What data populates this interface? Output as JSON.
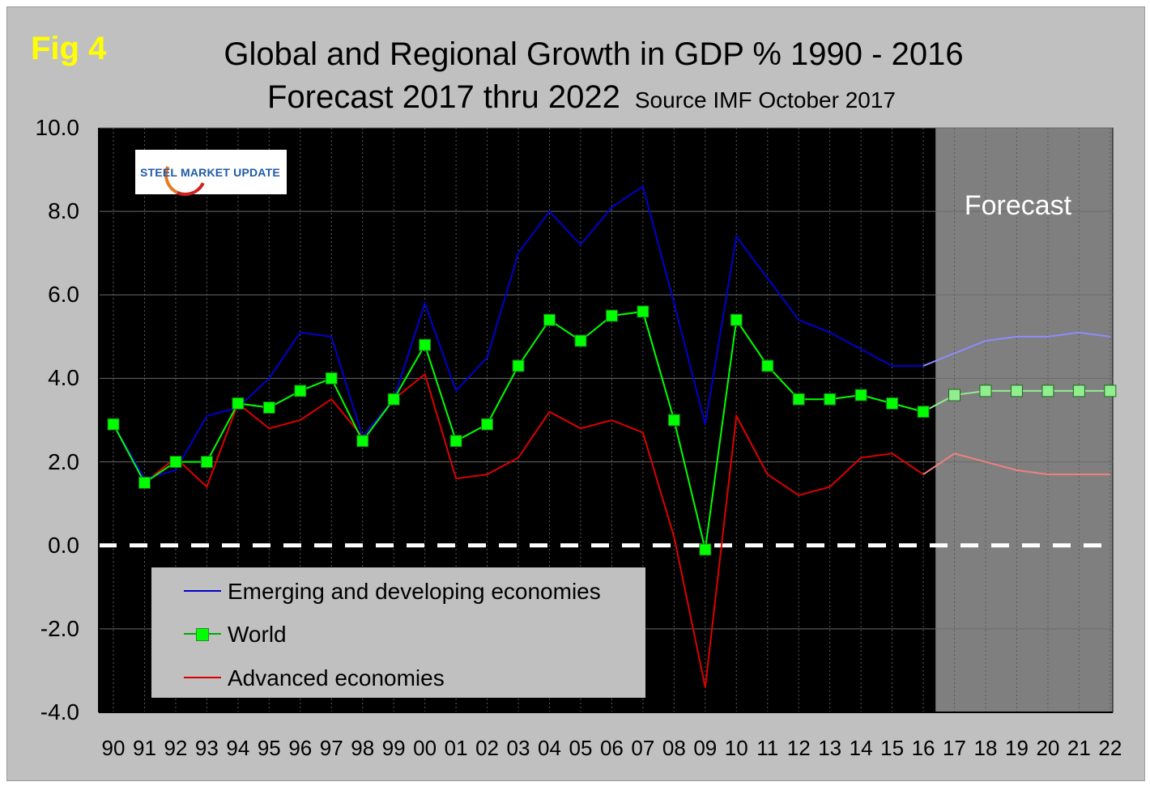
{
  "figure": {
    "label": "Fig 4",
    "title_line1": "Global and Regional Growth in GDP % 1990 - 2016",
    "title_line2": "Forecast 2017 thru 2022",
    "source": "Source IMF October 2017",
    "logo_text_steel": "STEEL",
    "logo_text_rest": " MARKET UPDATE",
    "forecast_label": "Forecast"
  },
  "colors": {
    "plot_bg": "#000000",
    "forecast_bg": "#7f7f7f",
    "frame_bg": "#c0c0c0",
    "emerging": "#0000cc",
    "emerging_forecast": "#8c8cff",
    "world": "#00ff00",
    "world_forecast": "#90ee90",
    "advanced": "#dd0000",
    "advanced_forecast": "#f08080",
    "zero_line": "#ffffff"
  },
  "chart_data": {
    "type": "line",
    "title": "Global and Regional Growth in GDP % 1990 - 2016",
    "subtitle": "Forecast 2017 thru 2022",
    "xlabel": "",
    "ylabel": "",
    "categories": [
      "90",
      "91",
      "92",
      "93",
      "94",
      "95",
      "96",
      "97",
      "98",
      "99",
      "00",
      "01",
      "02",
      "03",
      "04",
      "05",
      "06",
      "07",
      "08",
      "09",
      "10",
      "11",
      "12",
      "13",
      "14",
      "15",
      "16",
      "17",
      "18",
      "19",
      "20",
      "21",
      "22"
    ],
    "forecast_start_index": 27,
    "ylim": [
      -4.0,
      10.0
    ],
    "yticks": [
      "10.0",
      "8.0",
      "6.0",
      "4.0",
      "2.0",
      "0.0",
      "-2.0",
      "-4.0"
    ],
    "ytick_values": [
      10,
      8,
      6,
      4,
      2,
      0,
      -2,
      -4
    ],
    "grid": "horizontal",
    "legend_position": "lower-left",
    "series": [
      {
        "name": "Emerging and developing economies",
        "key": "emerging",
        "marker": false,
        "values": [
          2.9,
          1.6,
          1.8,
          3.1,
          3.3,
          4.0,
          5.1,
          5.0,
          2.6,
          3.5,
          5.8,
          3.7,
          4.5,
          7.0,
          8.0,
          7.2,
          8.1,
          8.6,
          5.8,
          2.9,
          7.4,
          6.4,
          5.4,
          5.1,
          4.7,
          4.3,
          4.3,
          4.6,
          4.9,
          5.0,
          5.0,
          5.1,
          5.0
        ]
      },
      {
        "name": "World",
        "key": "world",
        "marker": true,
        "values": [
          2.9,
          1.5,
          2.0,
          2.0,
          3.4,
          3.3,
          3.7,
          4.0,
          2.5,
          3.5,
          4.8,
          2.5,
          2.9,
          4.3,
          5.4,
          4.9,
          5.5,
          5.6,
          3.0,
          -0.1,
          5.4,
          4.3,
          3.5,
          3.5,
          3.6,
          3.4,
          3.2,
          3.6,
          3.7,
          3.7,
          3.7,
          3.7,
          3.7
        ]
      },
      {
        "name": "Advanced economies",
        "key": "advanced",
        "marker": false,
        "values": [
          2.9,
          1.5,
          2.1,
          1.4,
          3.4,
          2.8,
          3.0,
          3.5,
          2.6,
          3.5,
          4.1,
          1.6,
          1.7,
          2.1,
          3.2,
          2.8,
          3.0,
          2.7,
          0.2,
          -3.4,
          3.1,
          1.7,
          1.2,
          1.4,
          2.1,
          2.2,
          1.7,
          2.2,
          2.0,
          1.8,
          1.7,
          1.7,
          1.7
        ]
      }
    ],
    "annotations": [
      "Forecast"
    ]
  }
}
